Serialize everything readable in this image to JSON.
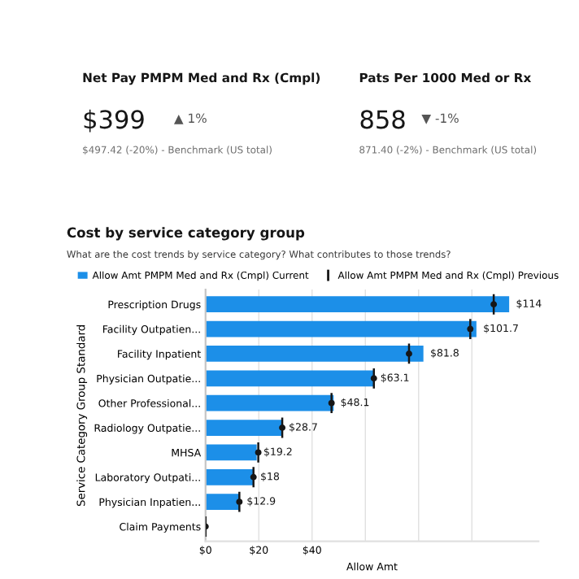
{
  "chart_data": [
    {
      "type": "other",
      "annotations": [
        "Net Pay PMPM Med and Rx (Cmpl)",
        "$399",
        "▲ 1%",
        "$497.42 (-20%) - Benchmark (US total)"
      ]
    },
    {
      "type": "other",
      "annotations": [
        "Pats Per 1000 Med or Rx",
        "858",
        "▼ -1%",
        "871.40 (-2%) - Benchmark (US total)"
      ]
    },
    {
      "type": "bar",
      "orientation": "horizontal",
      "title": "Cost by service category group",
      "subtitle": "What are the cost trends by service category? What contributes to those trends?",
      "xlabel": "Allow Amt",
      "ylabel": "Service Category Group Standard",
      "categories": [
        "Prescription Drugs",
        "Facility Outpatien...",
        "Facility Inpatient",
        "Physician Outpatie...",
        "Other Professional...",
        "Radiology Outpatie...",
        "MHSA",
        "Laboratory Outpati...",
        "Physician Inpatien...",
        "Claim Payments"
      ],
      "series": [
        {
          "name": "Allow Amt PMPM Med and Rx (Cmpl) Current",
          "color": "#1c8fe8",
          "values": [
            114,
            101.7,
            81.8,
            63.1,
            48.1,
            28.7,
            19.2,
            18,
            12.9,
            0
          ],
          "value_labels": [
            "$114",
            "$101.7",
            "$81.8",
            "$63.1",
            "$48.1",
            "$28.7",
            "$19.2",
            "$18",
            "$12.9",
            null
          ]
        },
        {
          "name": "Allow Amt PMPM Med and Rx (Cmpl) Previous",
          "type": "scatter",
          "color": "#161616",
          "values": [
            108.2,
            99.4,
            76.4,
            63.2,
            47.3,
            28.8,
            19.8,
            18,
            12.7,
            0
          ]
        }
      ],
      "xlim": [
        0,
        125
      ],
      "xticks": [
        {
          "value": 0,
          "label": "$0"
        },
        {
          "value": 20,
          "label": "$20"
        },
        {
          "value": 40,
          "label": "$40"
        },
        {
          "value": 60,
          "label": null
        },
        {
          "value": 80,
          "label": null
        },
        {
          "value": 100,
          "label": null
        }
      ],
      "grid": "x",
      "legend": "top"
    }
  ]
}
